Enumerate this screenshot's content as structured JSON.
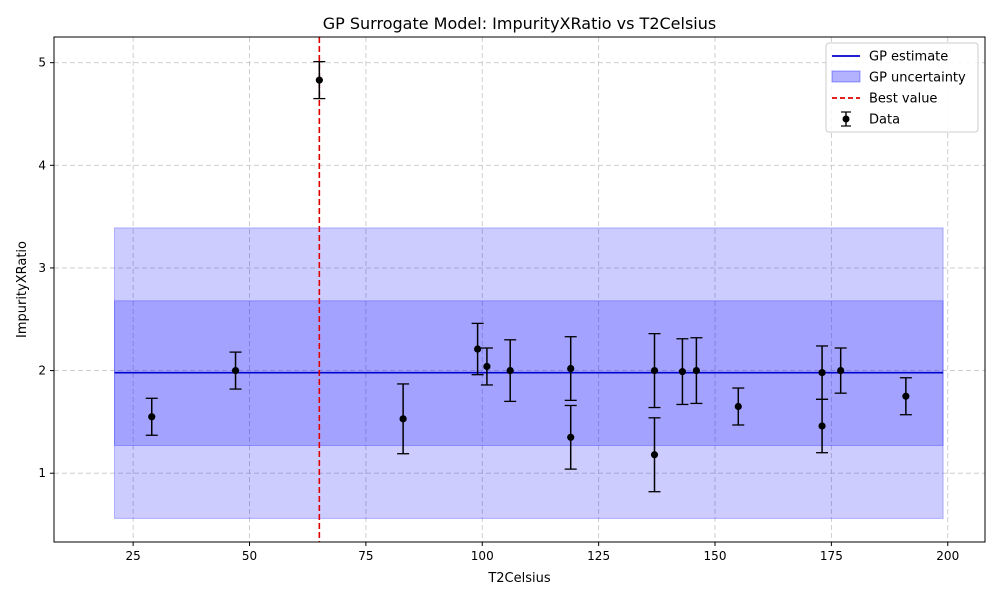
{
  "chart_data": {
    "type": "scatter",
    "title": "GP Surrogate Model: ImpurityXRatio vs T2Celsius",
    "xlabel": "T2Celsius",
    "ylabel": "ImpurityXRatio",
    "xlim": [
      8,
      208
    ],
    "ylim": [
      0.33,
      5.25
    ],
    "xticks": [
      25,
      50,
      75,
      100,
      125,
      150,
      175,
      200
    ],
    "yticks": [
      1,
      2,
      3,
      4,
      5
    ],
    "grid": true,
    "legend_position": "top-right",
    "legend": [
      {
        "name": "GP estimate",
        "kind": "line",
        "color": "#0000cc"
      },
      {
        "name": "GP uncertainty",
        "kind": "patch",
        "color": "#8080ff"
      },
      {
        "name": "Best value",
        "kind": "dashed",
        "color": "#dd0000"
      },
      {
        "name": "Data",
        "kind": "errorbar",
        "color": "#000000"
      }
    ],
    "gp_estimate": {
      "x": [
        21,
        199
      ],
      "y": 1.98
    },
    "gp_bands": [
      {
        "lower": 1.27,
        "upper": 2.68
      },
      {
        "lower": 0.56,
        "upper": 3.39
      }
    ],
    "best_value_x": 65,
    "points": [
      {
        "x": 29,
        "y": 1.55,
        "err": 0.18
      },
      {
        "x": 47,
        "y": 2.0,
        "err": 0.18
      },
      {
        "x": 65,
        "y": 4.83,
        "err": 0.18
      },
      {
        "x": 83,
        "y": 1.53,
        "err": 0.34
      },
      {
        "x": 99,
        "y": 2.21,
        "err": 0.25
      },
      {
        "x": 101,
        "y": 2.04,
        "err": 0.18
      },
      {
        "x": 106,
        "y": 2.0,
        "err": 0.3
      },
      {
        "x": 119,
        "y": 2.02,
        "err": 0.31
      },
      {
        "x": 119,
        "y": 1.35,
        "err": 0.31
      },
      {
        "x": 137,
        "y": 2.0,
        "err": 0.36
      },
      {
        "x": 137,
        "y": 1.18,
        "err": 0.36
      },
      {
        "x": 143,
        "y": 1.99,
        "err": 0.32
      },
      {
        "x": 146,
        "y": 2.0,
        "err": 0.32
      },
      {
        "x": 155,
        "y": 1.65,
        "err": 0.18
      },
      {
        "x": 173,
        "y": 1.98,
        "err": 0.26
      },
      {
        "x": 173,
        "y": 1.46,
        "err": 0.26
      },
      {
        "x": 177,
        "y": 2.0,
        "err": 0.22
      },
      {
        "x": 191,
        "y": 1.75,
        "err": 0.18
      }
    ]
  }
}
